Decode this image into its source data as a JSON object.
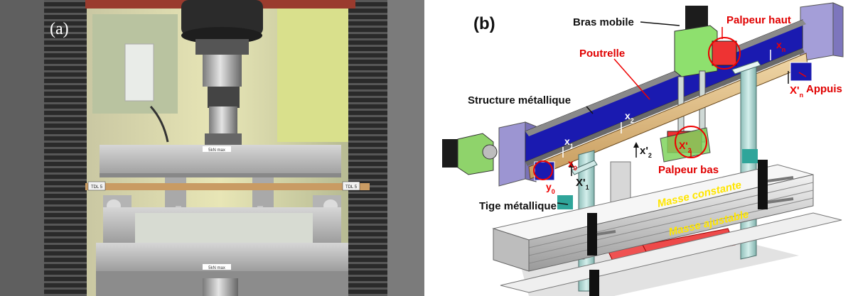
{
  "panel_a": {
    "label": "(a)",
    "device_label_top": "5kN max",
    "device_label_bottom": "5kN max",
    "specimen_tag_left": "TDL 5",
    "specimen_tag_right": "TDL 5"
  },
  "panel_b": {
    "label": "(b)",
    "labels": {
      "bras_mobile": "Bras mobile",
      "palpeur_haut": "Palpeur haut",
      "poutrelle": "Poutrelle",
      "structure": "Structure métallique",
      "appuis": "Appuis",
      "palpeur_bas": "Palpeur bas",
      "tige": "Tige métallique",
      "masse_constante": "Masse constante",
      "masse_ajustable": "Masse ajustable",
      "x0": "x",
      "x0_sub": "0",
      "x1": "x",
      "x1_sub": "1",
      "x2": "x",
      "x2_sub": "2",
      "xn": "x",
      "xn_sub": "n",
      "xpn": "X'",
      "xpn_sub": "n",
      "xp1": "X'",
      "xp1_sub": "1",
      "xp2": "x'",
      "xp2_sub": "2",
      "xp_red": "X'",
      "xp_red_sub": "2",
      "y0": "y",
      "y0_sub": "0"
    }
  }
}
